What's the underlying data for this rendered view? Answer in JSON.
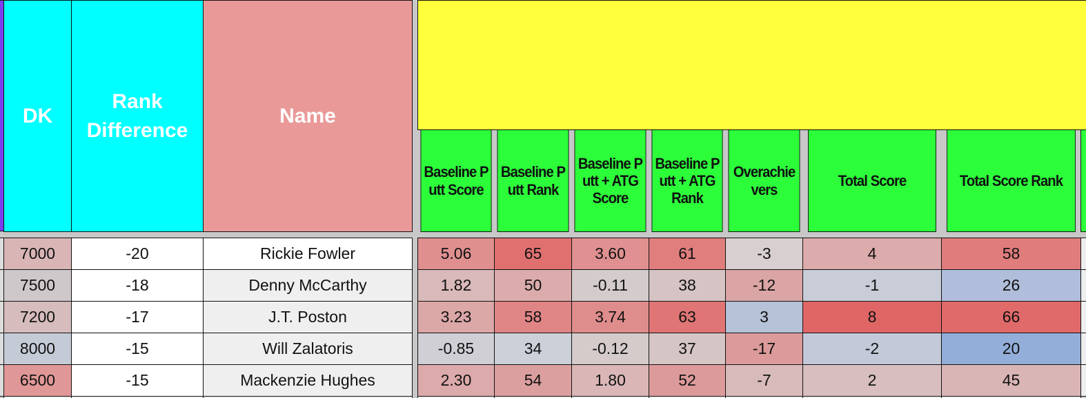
{
  "left_header": {
    "dk": "DK",
    "rank_difference": "Rank Difference",
    "name": "Name"
  },
  "right_header": [
    "Baseline Putt Score",
    "Baseline Putt Rank",
    "Baseline Putt + ATG Score",
    "Baseline Putt + ATG Rank",
    "Overachievers",
    "Total Score",
    "Total Score Rank"
  ],
  "rows": [
    [
      "7000",
      "-20",
      "Rickie Fowler",
      "5.06",
      "65",
      "3.60",
      "61",
      "-3",
      "4",
      "58"
    ],
    [
      "7500",
      "-18",
      "Denny McCarthy",
      "1.82",
      "50",
      "-0.11",
      "38",
      "-12",
      "-1",
      "26"
    ],
    [
      "7200",
      "-17",
      "J.T. Poston",
      "3.23",
      "58",
      "3.74",
      "63",
      "3",
      "8",
      "66"
    ],
    [
      "8000",
      "-15",
      "Will Zalatoris",
      "-0.85",
      "34",
      "-0.12",
      "37",
      "-17",
      "-2",
      "20"
    ],
    [
      "6500",
      "-15",
      "Mackenzie Hughes",
      "2.30",
      "54",
      "1.80",
      "52",
      "-7",
      "2",
      "45"
    ]
  ]
}
